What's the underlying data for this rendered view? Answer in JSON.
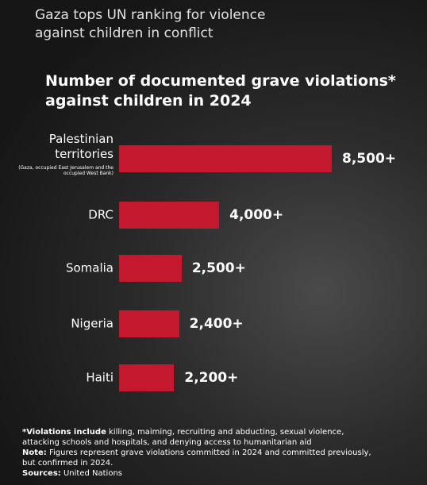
{
  "header": "Gaza tops UN ranking for violence against children in conflict",
  "chart_data": {
    "type": "bar",
    "orientation": "horizontal",
    "title": "Number of documented grave violations* against children in 2024",
    "categories": [
      "Palestinian territories",
      "DRC",
      "Somalia",
      "Nigeria",
      "Haiti"
    ],
    "annotation": "(Gaza, occupied East Jerusalem and the occupied West Bank)",
    "values": [
      8500,
      4000,
      2500,
      2400,
      2200
    ],
    "value_labels": [
      "8,500+",
      "4,000+",
      "2,500+",
      "2,400+",
      "2,200+"
    ],
    "color": "#c3182e"
  },
  "notes": [
    {
      "label": "*Violations include",
      "text": "killing, maiming, recruiting and abducting, sexual violence, attacking schools and hospitals, and denying access to humanitarian aid"
    },
    {
      "label": "Note:",
      "text": "Figures represent grave violations committed in 2024 and committed previously, but confirmed in 2024."
    },
    {
      "label": "Sources:",
      "text": "United Nations"
    }
  ]
}
